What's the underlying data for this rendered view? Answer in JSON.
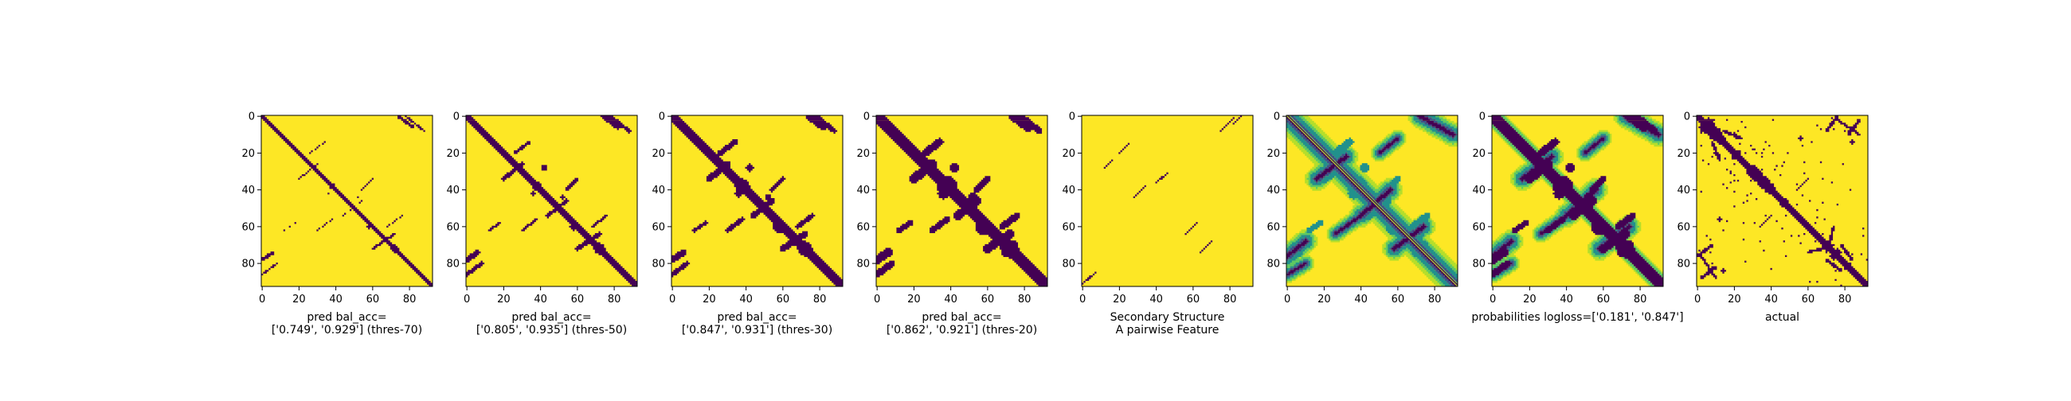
{
  "colors": {
    "yellow": "#fde725",
    "purple": "#440154",
    "teal": "#21918c",
    "green": "#5ec962",
    "lightgreen": "#b5de2b",
    "blue": "#3b528b",
    "axis": "#000000"
  },
  "chart_data": [
    {
      "type": "heatmap",
      "variant": "binary",
      "colormap": "viridis",
      "xlim": [
        0,
        93
      ],
      "ylim": [
        93,
        0
      ],
      "xticks": [
        "0",
        "20",
        "40",
        "60",
        "80"
      ],
      "yticks": [
        "0",
        "20",
        "40",
        "60",
        "80"
      ],
      "xlabel": [
        "pred bal_acc=",
        "['0.749', '0.929'] (thres-70)"
      ],
      "balanced_accuracy": [
        0.749,
        0.929
      ],
      "threshold": 70
    },
    {
      "type": "heatmap",
      "variant": "binary",
      "colormap": "viridis",
      "xlim": [
        0,
        93
      ],
      "ylim": [
        93,
        0
      ],
      "xticks": [
        "0",
        "20",
        "40",
        "60",
        "80"
      ],
      "yticks": [
        "0",
        "20",
        "40",
        "60",
        "80"
      ],
      "xlabel": [
        "pred bal_acc=",
        "['0.805', '0.935'] (thres-50)"
      ],
      "balanced_accuracy": [
        0.805,
        0.935
      ],
      "threshold": 50
    },
    {
      "type": "heatmap",
      "variant": "binary",
      "colormap": "viridis",
      "xlim": [
        0,
        93
      ],
      "ylim": [
        93,
        0
      ],
      "xticks": [
        "0",
        "20",
        "40",
        "60",
        "80"
      ],
      "yticks": [
        "0",
        "20",
        "40",
        "60",
        "80"
      ],
      "xlabel": [
        "pred bal_acc=",
        "['0.847', '0.931'] (thres-30)"
      ],
      "balanced_accuracy": [
        0.847,
        0.931
      ],
      "threshold": 30
    },
    {
      "type": "heatmap",
      "variant": "binary",
      "colormap": "viridis",
      "xlim": [
        0,
        93
      ],
      "ylim": [
        93,
        0
      ],
      "xticks": [
        "0",
        "20",
        "40",
        "60",
        "80"
      ],
      "yticks": [
        "0",
        "20",
        "40",
        "60",
        "80"
      ],
      "xlabel": [
        "pred bal_acc=",
        "['0.862', '0.921'] (thres-20)"
      ],
      "balanced_accuracy": [
        0.862,
        0.921
      ],
      "threshold": 20
    },
    {
      "type": "heatmap",
      "variant": "secondary",
      "colormap": "viridis",
      "xlim": [
        0,
        93
      ],
      "ylim": [
        93,
        0
      ],
      "xticks": [
        "0",
        "20",
        "40",
        "60",
        "80"
      ],
      "yticks": [
        "0",
        "20",
        "40",
        "60",
        "80"
      ],
      "xlabel": [
        "Secondary Structure",
        "A pairwise Feature"
      ]
    },
    {
      "type": "heatmap",
      "variant": "continuous",
      "colormap": "viridis",
      "xlim": [
        0,
        93
      ],
      "ylim": [
        93,
        0
      ],
      "xticks": [
        "0",
        "20",
        "40",
        "60",
        "80"
      ],
      "yticks": [
        "0",
        "20",
        "40",
        "60",
        "80"
      ],
      "xlabel": []
    },
    {
      "type": "heatmap",
      "variant": "probabilities",
      "colormap": "viridis",
      "xlim": [
        0,
        93
      ],
      "ylim": [
        93,
        0
      ],
      "xticks": [
        "0",
        "20",
        "40",
        "60",
        "80"
      ],
      "yticks": [
        "0",
        "20",
        "40",
        "60",
        "80"
      ],
      "xlabel": [
        "probabilities logloss=['0.181', '0.847']"
      ],
      "logloss": [
        0.181,
        0.847
      ]
    },
    {
      "type": "heatmap",
      "variant": "actual",
      "colormap": "viridis",
      "xlim": [
        0,
        93
      ],
      "ylim": [
        93,
        0
      ],
      "xticks": [
        "0",
        "20",
        "40",
        "60",
        "80"
      ],
      "yticks": [
        "0",
        "20",
        "40",
        "60",
        "80"
      ],
      "xlabel": [
        "actual"
      ]
    }
  ]
}
